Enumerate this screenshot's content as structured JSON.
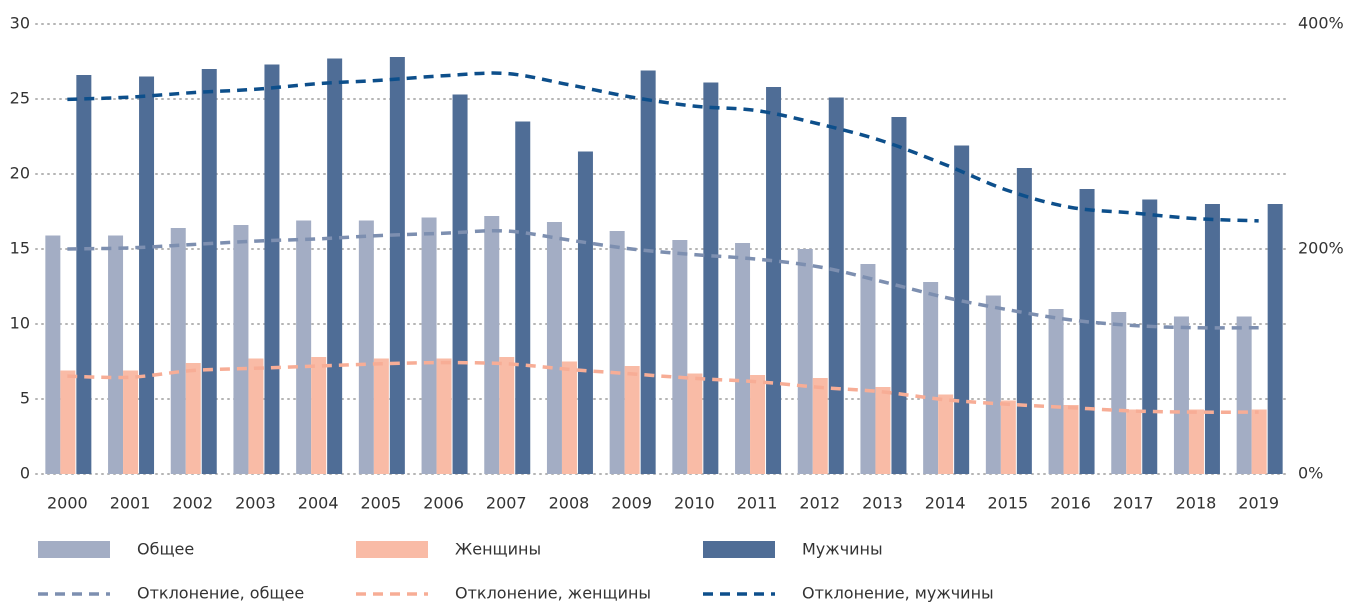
{
  "chart_data": {
    "type": "bar",
    "categories": [
      "2000",
      "2001",
      "2002",
      "2003",
      "2004",
      "2005",
      "2006",
      "2007",
      "2008",
      "2009",
      "2010",
      "2011",
      "2012",
      "2013",
      "2014",
      "2015",
      "2016",
      "2017",
      "2018",
      "2019"
    ],
    "series": [
      {
        "name": "Общее",
        "type": "bar",
        "color": "#a3adc4",
        "values": [
          15.9,
          15.9,
          16.4,
          16.6,
          16.9,
          16.9,
          17.1,
          17.2,
          16.8,
          16.2,
          15.6,
          15.4,
          15.0,
          14.0,
          12.8,
          11.9,
          11.0,
          10.8,
          10.5,
          10.5
        ]
      },
      {
        "name": "Женщины",
        "type": "bar",
        "color": "#f9bba6",
        "values": [
          6.9,
          6.9,
          7.4,
          7.7,
          7.8,
          7.7,
          7.7,
          7.8,
          7.5,
          7.2,
          6.7,
          6.6,
          6.4,
          5.8,
          5.3,
          4.9,
          4.6,
          4.3,
          4.3,
          4.3
        ]
      },
      {
        "name": "Мужчины",
        "type": "bar",
        "color": "#4f6d96",
        "values": [
          26.6,
          26.5,
          27.0,
          27.3,
          27.7,
          27.8,
          25.3,
          23.5,
          21.5,
          26.9,
          26.1,
          25.8,
          25.1,
          23.8,
          21.9,
          20.4,
          19.0,
          18.3,
          18.0,
          18.0
        ]
      },
      {
        "name": "Отклонение, общее",
        "type": "line",
        "axis": "y2",
        "color": "#7d8fb0",
        "values": [
          200,
          201,
          204,
          207,
          209,
          212,
          214,
          216,
          208,
          200,
          195,
          191,
          184,
          171,
          157,
          146,
          137,
          132,
          130,
          130
        ]
      },
      {
        "name": "Отклонение, женщины",
        "type": "line",
        "axis": "y2",
        "color": "#f7ad96",
        "values": [
          87,
          86,
          92,
          94,
          96,
          98,
          99,
          98,
          93,
          89,
          85,
          82,
          77,
          73,
          66,
          62,
          59,
          56,
          55,
          55
        ]
      },
      {
        "name": "Отклонение, мужчины",
        "type": "line",
        "axis": "y2",
        "color": "#0d4f8b",
        "values": [
          333,
          335,
          339,
          342,
          347,
          350,
          354,
          356,
          346,
          335,
          327,
          323,
          311,
          296,
          275,
          252,
          237,
          232,
          227,
          225
        ]
      }
    ],
    "ylim": [
      0,
      30
    ],
    "yticks": [
      0,
      5,
      10,
      15,
      20,
      25,
      30
    ],
    "y2lim": [
      0,
      400
    ],
    "y2ticks": [
      {
        "value": 0,
        "label": "0%"
      },
      {
        "value": 200,
        "label": "200%"
      },
      {
        "value": 400,
        "label": "400%"
      }
    ],
    "grid": true
  }
}
